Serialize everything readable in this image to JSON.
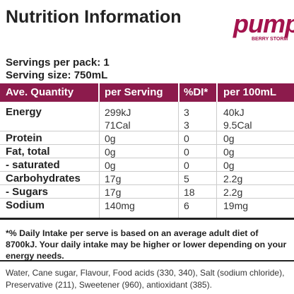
{
  "header": {
    "title": "Nutrition Information",
    "logo": "pump",
    "logo_subtitle": "BERRY STORM"
  },
  "servings": [
    "Servings per pack: 1",
    "Serving size: 750mL"
  ],
  "table": {
    "header": [
      "Ave. Quantity",
      "per Serving",
      "%DI*",
      "per 100mL"
    ],
    "rows": [
      {
        "label": "Energy",
        "lines": [
          [
            "299kJ",
            "3",
            "40kJ"
          ],
          [
            "71Cal",
            "3",
            "9.5Cal"
          ]
        ]
      },
      {
        "label": "Protein",
        "lines": [
          [
            "0g",
            "0",
            "0g"
          ]
        ]
      },
      {
        "label": "Fat, total",
        "lines": [
          [
            "0g",
            "0",
            "0g"
          ]
        ]
      },
      {
        "label": "- saturated",
        "lines": [
          [
            "0g",
            "0",
            "0g"
          ]
        ]
      },
      {
        "label": "Carbohydrates",
        "lines": [
          [
            "17g",
            "5",
            "2.2g"
          ]
        ]
      },
      {
        "label": "- Sugars",
        "lines": [
          [
            "17g",
            "18",
            "2.2g"
          ]
        ]
      },
      {
        "label": "Sodium",
        "lines": [
          [
            "140mg",
            "6",
            "19mg"
          ]
        ]
      }
    ]
  },
  "footnote": "*% Daily Intake per serve is based on an average adult diet of 8700kJ. Your daily intake may be higher or lower depending on your energy needs.",
  "ingredients": "Water, Cane sugar, Flavour, Food acids (330, 340), Salt (sodium chloride), Preservative (211), Sweetener (960), antioxidant (385)."
}
